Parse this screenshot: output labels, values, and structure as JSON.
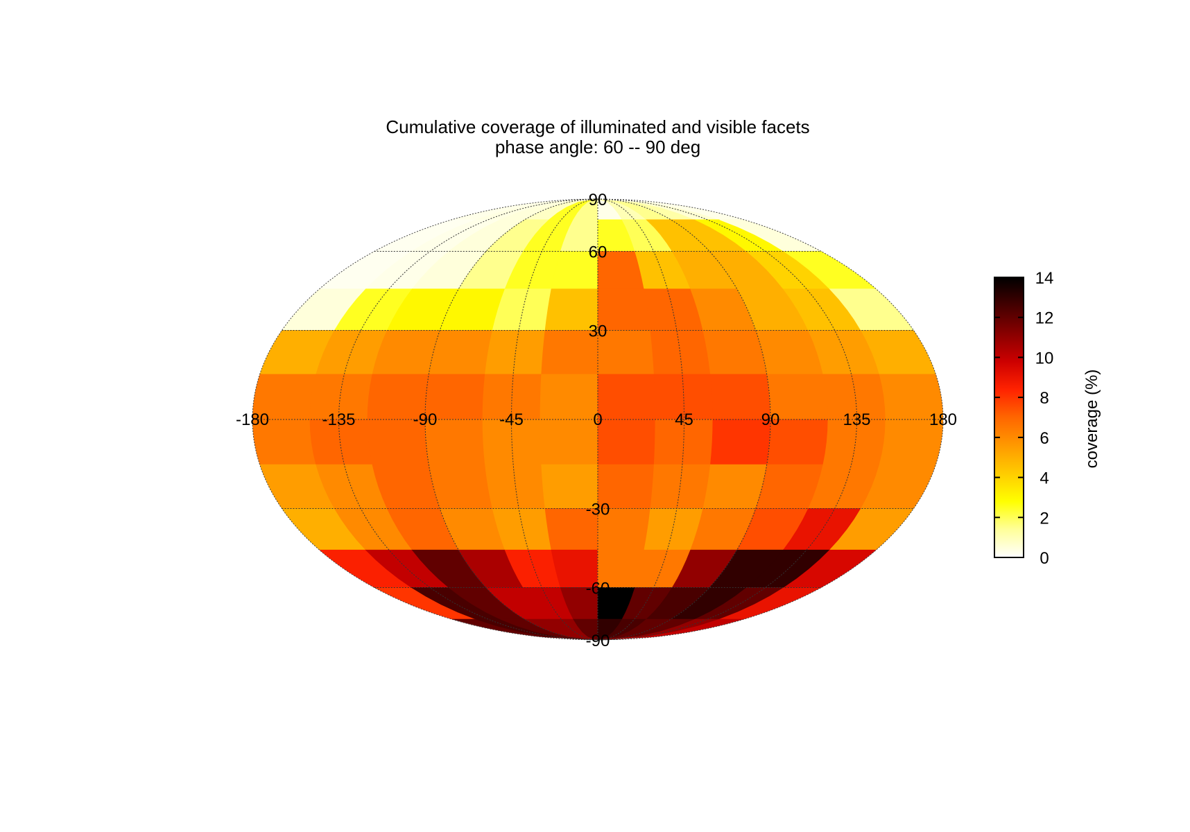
{
  "chart_data": {
    "type": "heatmap",
    "projection": "mollweide",
    "title": "Cumulative coverage of illuminated and visible facets",
    "subtitle": "phase angle:  60 --  90 deg",
    "colorbar_label": "coverage (%)",
    "colorbar_range": [
      0,
      14
    ],
    "colorbar_ticks": [
      "0",
      "2",
      "4",
      "6",
      "8",
      "10",
      "12",
      "14"
    ],
    "colormap": [
      "#ffffff",
      "#ffff99",
      "#ffff00",
      "#ffcc00",
      "#ff9900",
      "#ff6600",
      "#ff2200",
      "#cc0000",
      "#880000",
      "#440000",
      "#000000"
    ],
    "lon_ticks": [
      "-180",
      "-135",
      "-90",
      "-45",
      "0",
      "45",
      "90",
      "135",
      "180"
    ],
    "lat_ticks": [
      "90",
      "60",
      "30",
      "-30",
      "-60",
      "-90"
    ],
    "lon_centers": [
      -165,
      -135,
      -105,
      -75,
      -45,
      -15,
      15,
      45,
      75,
      105,
      135,
      165
    ],
    "lat_centers": [
      82.5,
      67.5,
      52.5,
      37.5,
      22.5,
      7.5,
      -7.5,
      -22.5,
      -37.5,
      -52.5,
      -67.5,
      -82.5
    ],
    "values": [
      [
        0.3,
        0.4,
        0.5,
        0.8,
        2.5,
        1.5,
        0.3,
        1.0,
        1.5,
        1.2,
        0.6,
        0.3
      ],
      [
        0.2,
        0.3,
        0.5,
        1.5,
        2.5,
        1.5,
        2.5,
        2.0,
        4.5,
        4.5,
        3.0,
        0.5
      ],
      [
        0.2,
        0.3,
        0.5,
        1.5,
        2.5,
        2.5,
        7.0,
        4.5,
        5.0,
        5.0,
        4.0,
        2.5
      ],
      [
        0.5,
        2.5,
        3.0,
        3.0,
        2.0,
        4.5,
        7.0,
        7.0,
        6.0,
        5.0,
        4.5,
        1.5
      ],
      [
        5.0,
        5.5,
        6.0,
        6.0,
        5.5,
        6.5,
        6.5,
        7.0,
        6.5,
        6.0,
        5.5,
        5.0
      ],
      [
        6.5,
        6.5,
        7.0,
        7.0,
        6.5,
        6.0,
        7.5,
        7.5,
        7.5,
        6.5,
        6.5,
        6.0
      ],
      [
        6.5,
        7.0,
        7.0,
        6.5,
        6.0,
        6.0,
        7.5,
        7.0,
        8.0,
        7.5,
        6.5,
        6.0
      ],
      [
        5.5,
        6.0,
        7.0,
        6.5,
        6.0,
        5.5,
        7.0,
        6.5,
        6.0,
        7.0,
        6.5,
        6.0
      ],
      [
        5.0,
        6.0,
        7.0,
        6.0,
        5.5,
        7.0,
        6.5,
        5.5,
        6.5,
        7.5,
        9.0,
        5.5
      ],
      [
        8.5,
        10.0,
        12.0,
        10.5,
        8.5,
        9.0,
        6.5,
        6.5,
        11.0,
        13.0,
        13.0,
        9.5
      ],
      [
        8.0,
        12.5,
        12.0,
        10.0,
        10.0,
        11.0,
        14.0,
        12.0,
        12.5,
        13.0,
        12.0,
        9.0
      ],
      [
        12.0,
        12.5,
        12.0,
        11.0,
        11.0,
        12.0,
        13.0,
        12.5,
        12.0,
        12.0,
        11.0,
        10.0
      ]
    ]
  }
}
